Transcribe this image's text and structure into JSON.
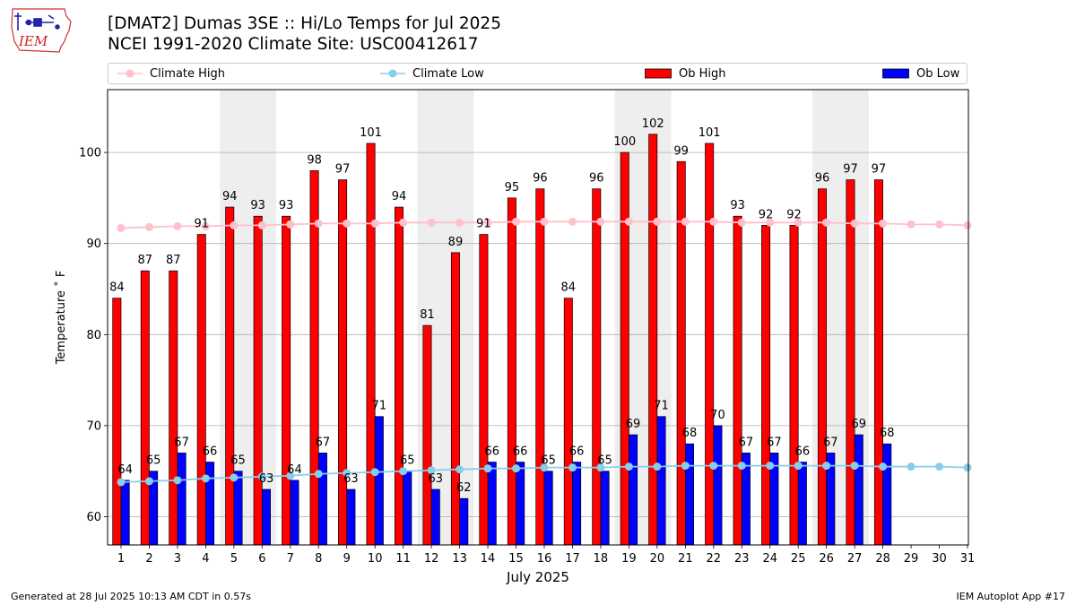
{
  "header": {
    "title_line1": "[DMAT2] Dumas 3SE :: Hi/Lo Temps for Jul 2025",
    "title_line2": "NCEI 1991-2020 Climate Site: USC00412617",
    "logo_text": "IEM"
  },
  "footer": {
    "generated": "Generated at 28 Jul 2025 10:13 AM CDT in 0.57s",
    "app": "IEM Autoplot App #17"
  },
  "colors": {
    "ob_high": "#ff0000",
    "ob_low": "#0000ff",
    "climate_high": "#ffc0cb",
    "climate_low": "#87ceeb",
    "weekend_shade": "#eeeeee",
    "grid": "#b0b0b0"
  },
  "chart_data": {
    "type": "bar",
    "xlabel": "July 2025",
    "ylabel": "Temperature ˚ F",
    "ylim": [
      56.9,
      106.9
    ],
    "yticks": [
      60,
      70,
      80,
      90,
      100
    ],
    "grid": "horizontal",
    "legend_position": "top",
    "days": [
      1,
      2,
      3,
      4,
      5,
      6,
      7,
      8,
      9,
      10,
      11,
      12,
      13,
      14,
      15,
      16,
      17,
      18,
      19,
      20,
      21,
      22,
      23,
      24,
      25,
      26,
      27,
      28,
      29,
      30,
      31
    ],
    "weekend_days": [
      5,
      6,
      12,
      13,
      19,
      20,
      26,
      27
    ],
    "series": [
      {
        "name": "Climate High",
        "type": "line",
        "values": [
          91.7,
          91.8,
          91.9,
          91.9,
          92.0,
          92.0,
          92.1,
          92.2,
          92.2,
          92.2,
          92.3,
          92.3,
          92.3,
          92.3,
          92.4,
          92.4,
          92.4,
          92.4,
          92.4,
          92.4,
          92.4,
          92.4,
          92.3,
          92.3,
          92.3,
          92.3,
          92.2,
          92.2,
          92.1,
          92.1,
          92.0
        ]
      },
      {
        "name": "Climate Low",
        "type": "line",
        "values": [
          63.8,
          63.9,
          64.0,
          64.2,
          64.3,
          64.4,
          64.5,
          64.7,
          64.8,
          64.9,
          65.0,
          65.1,
          65.2,
          65.3,
          65.3,
          65.4,
          65.4,
          65.4,
          65.5,
          65.5,
          65.6,
          65.6,
          65.6,
          65.6,
          65.6,
          65.6,
          65.6,
          65.5,
          65.5,
          65.5,
          65.4
        ]
      },
      {
        "name": "Ob High",
        "type": "bar",
        "values": [
          84,
          87,
          87,
          91,
          94,
          93,
          93,
          98,
          97,
          101,
          94,
          81,
          89,
          91,
          95,
          96,
          84,
          96,
          100,
          102,
          99,
          101,
          93,
          92,
          92,
          96,
          97,
          97
        ]
      },
      {
        "name": "Ob Low",
        "type": "bar",
        "values": [
          64,
          65,
          67,
          66,
          65,
          63,
          64,
          67,
          63,
          71,
          65,
          63,
          62,
          66,
          66,
          65,
          66,
          65,
          69,
          71,
          68,
          70,
          67,
          67,
          66,
          67,
          69,
          68
        ]
      }
    ]
  }
}
